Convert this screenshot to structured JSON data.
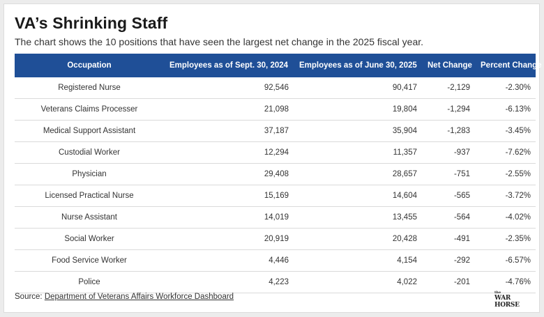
{
  "title": "VA’s Shrinking Staff",
  "subtitle": "The chart shows the 10 positions that have seen the largest net change in the 2025 fiscal year.",
  "source": {
    "prefix": "Source: ",
    "link_text": "Department of Veterans Affairs Workforce Dashboard"
  },
  "logo": {
    "text": "WAR HORSE",
    "small_text": "the"
  },
  "colors": {
    "header_bg": "#1f4f97",
    "header_text": "#ffffff",
    "row_border": "#dadada"
  },
  "chart_data": {
    "type": "table",
    "columns": [
      "Occupation",
      "Employees as of Sept. 30, 2024",
      "Employees as of June 30, 2025",
      "Net Change",
      "Percent Change"
    ],
    "rows": [
      [
        "Registered Nurse",
        "92,546",
        "90,417",
        "-2,129",
        "-2.30%"
      ],
      [
        "Veterans Claims Processer",
        "21,098",
        "19,804",
        "-1,294",
        "-6.13%"
      ],
      [
        "Medical Support Assistant",
        "37,187",
        "35,904",
        "-1,283",
        "-3.45%"
      ],
      [
        "Custodial Worker",
        "12,294",
        "11,357",
        "-937",
        "-7.62%"
      ],
      [
        "Physician",
        "29,408",
        "28,657",
        "-751",
        "-2.55%"
      ],
      [
        "Licensed Practical Nurse",
        "15,169",
        "14,604",
        "-565",
        "-3.72%"
      ],
      [
        "Nurse Assistant",
        "14,019",
        "13,455",
        "-564",
        "-4.02%"
      ],
      [
        "Social Worker",
        "20,919",
        "20,428",
        "-491",
        "-2.35%"
      ],
      [
        "Food Service Worker",
        "4,446",
        "4,154",
        "-292",
        "-6.57%"
      ],
      [
        "Police",
        "4,223",
        "4,022",
        "-201",
        "-4.76%"
      ]
    ]
  }
}
